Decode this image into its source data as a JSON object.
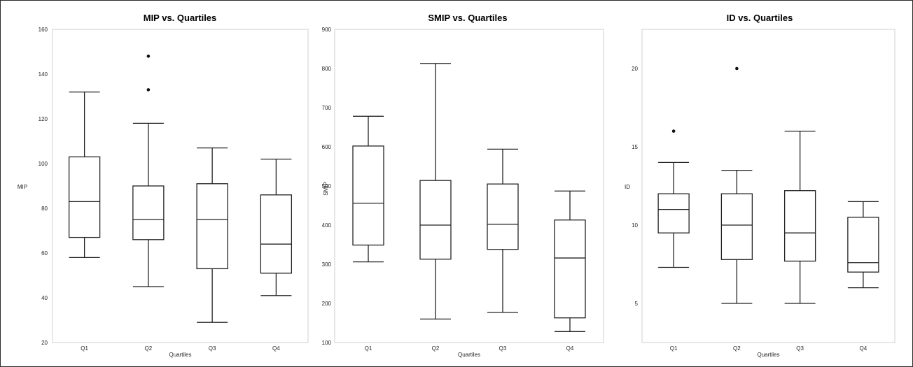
{
  "chart_data": [
    {
      "type": "box",
      "title": "MIP vs. Quartiles",
      "xlabel": "Quartiles",
      "ylabel": "MIP",
      "ylim": [
        20,
        160
      ],
      "yticks": [
        20,
        40,
        60,
        80,
        100,
        120,
        140,
        160
      ],
      "categories": [
        "Q1",
        "Q2",
        "Q3",
        "Q4"
      ],
      "boxes": [
        {
          "min": 58,
          "q1": 67,
          "median": 83,
          "q3": 103,
          "max": 132,
          "outliers": []
        },
        {
          "min": 45,
          "q1": 66,
          "median": 75,
          "q3": 90,
          "max": 118,
          "outliers": [
            133,
            148
          ]
        },
        {
          "min": 29,
          "q1": 53,
          "median": 75,
          "q3": 91,
          "max": 107,
          "outliers": []
        },
        {
          "min": 41,
          "q1": 51,
          "median": 64,
          "q3": 86,
          "max": 102,
          "outliers": []
        }
      ]
    },
    {
      "type": "box",
      "title": "SMIP vs. Quartiles",
      "xlabel": "Quartiles",
      "ylabel": "SMIP",
      "ylim": [
        100,
        900
      ],
      "yticks": [
        100,
        200,
        300,
        400,
        500,
        600,
        700,
        800,
        900
      ],
      "categories": [
        "Q1",
        "Q2",
        "Q3",
        "Q4"
      ],
      "boxes": [
        {
          "min": 306,
          "q1": 349,
          "median": 456,
          "q3": 602,
          "max": 678,
          "outliers": []
        },
        {
          "min": 160,
          "q1": 313,
          "median": 400,
          "q3": 514,
          "max": 813,
          "outliers": []
        },
        {
          "min": 177,
          "q1": 338,
          "median": 402,
          "q3": 505,
          "max": 594,
          "outliers": []
        },
        {
          "min": 128,
          "q1": 163,
          "median": 316,
          "q3": 413,
          "max": 487,
          "outliers": []
        }
      ]
    },
    {
      "type": "box",
      "title": "ID vs. Quartiles",
      "xlabel": "Quartiles",
      "ylabel": "ID",
      "ylim": [
        2.5,
        22.5
      ],
      "yticks": [
        5,
        10,
        15,
        20
      ],
      "categories": [
        "Q1",
        "Q2",
        "Q3",
        "Q4"
      ],
      "boxes": [
        {
          "min": 7.3,
          "q1": 9.5,
          "median": 11.0,
          "q3": 12.0,
          "max": 14.0,
          "outliers": [
            16.0
          ]
        },
        {
          "min": 5.0,
          "q1": 7.8,
          "median": 10.0,
          "q3": 12.0,
          "max": 13.5,
          "outliers": [
            20.0
          ]
        },
        {
          "min": 5.0,
          "q1": 7.7,
          "median": 9.5,
          "q3": 12.2,
          "max": 16.0,
          "outliers": []
        },
        {
          "min": 6.0,
          "q1": 7.0,
          "median": 7.6,
          "q3": 10.5,
          "max": 11.5,
          "outliers": []
        }
      ]
    }
  ]
}
